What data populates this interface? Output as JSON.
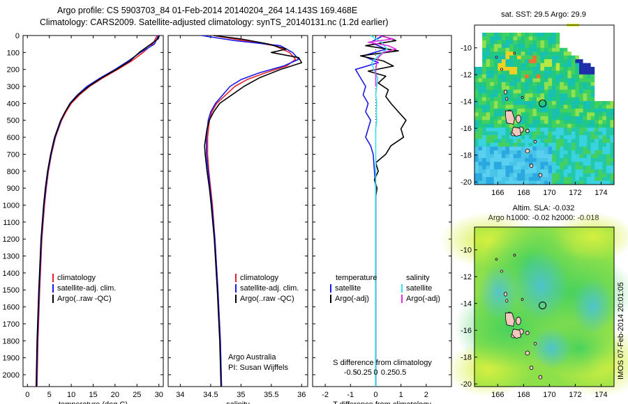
{
  "header": {
    "line1": "Argo profile: CS 5903703_84 01-Feb-2014 20140204_264 14.143S 169.468E",
    "line2": "Climatology: CARS2009. Satellite-adjusted climatology: synTS_20140131.nc (1.2d earlier)"
  },
  "side_stamp": "IMOS 07-Feb-2014 20:01:05",
  "colors": {
    "climatology": "#e8202a",
    "satellite": "#1a1ae6",
    "argo": "#000000",
    "sal_satellite": "#33e0f0",
    "sal_argo": "#e030e0",
    "float_marker": "#000000",
    "island": "#f2c8c0"
  },
  "chart_data": [
    {
      "type": "line",
      "name": "temperature",
      "xlabel": "temperature (deg C)",
      "ylabel": "",
      "xlim": [
        -1,
        31
      ],
      "xticks": [
        0,
        5,
        10,
        15,
        20,
        25,
        30
      ],
      "ylim": [
        0,
        2070
      ],
      "yticks": [
        0,
        100,
        200,
        300,
        400,
        500,
        600,
        700,
        800,
        900,
        1000,
        1100,
        1200,
        1300,
        1400,
        1500,
        1600,
        1700,
        1800,
        1900,
        2000
      ],
      "legend": [
        "climatology",
        "satellite-adj. clim.",
        "Argo(..raw -QC)"
      ],
      "series": [
        {
          "name": "climatology",
          "depth": [
            0,
            50,
            100,
            150,
            200,
            250,
            300,
            350,
            400,
            450,
            500,
            600,
            700,
            800,
            900,
            1000,
            1200,
            1500,
            1800,
            2070
          ],
          "values": [
            29.6,
            28.6,
            26.4,
            23.8,
            20.6,
            17.2,
            14.2,
            11.9,
            10.0,
            8.8,
            7.8,
            6.4,
            5.5,
            4.8,
            4.3,
            3.9,
            3.3,
            2.8,
            2.4,
            2.2
          ]
        },
        {
          "name": "satellite-adj. clim.",
          "depth": [
            0,
            50,
            100,
            150,
            200,
            250,
            300,
            350,
            400,
            450,
            500,
            600,
            700,
            800,
            900,
            1000,
            1200,
            1500,
            1800,
            2070
          ],
          "values": [
            29.9,
            29.0,
            25.8,
            23.0,
            20.0,
            16.6,
            13.6,
            11.4,
            9.7,
            8.6,
            7.7,
            6.3,
            5.4,
            4.7,
            4.2,
            3.8,
            3.2,
            2.7,
            2.3,
            2.1
          ]
        },
        {
          "name": "Argo(..raw -QC)",
          "depth": [
            0,
            20,
            50,
            100,
            150,
            200,
            250,
            300,
            350,
            400,
            450,
            500,
            600,
            700,
            800,
            900,
            1000,
            1200,
            1500,
            1800,
            2070
          ],
          "values": [
            30.1,
            29.8,
            28.2,
            25.5,
            23.4,
            20.3,
            16.9,
            14.0,
            11.6,
            9.8,
            8.6,
            7.6,
            6.2,
            5.3,
            4.6,
            4.1,
            3.7,
            3.1,
            2.6,
            2.2,
            2.0
          ]
        }
      ]
    },
    {
      "type": "line",
      "name": "salinity",
      "xlabel": "salinity",
      "ylabel": "",
      "xlim": [
        33.8,
        36.1
      ],
      "xticks": [
        34,
        34.5,
        35,
        35.5,
        36
      ],
      "xticklabels": [
        "34",
        "34.5",
        "35",
        "35.5",
        "36"
      ],
      "ylim": [
        0,
        2070
      ],
      "legend": [
        "climatology",
        "satellite-adj. clim.",
        "Argo(..raw -QC)"
      ],
      "annotation": [
        "Argo Australia",
        "PI: Susan Wijffels"
      ],
      "series": [
        {
          "name": "climatology",
          "depth": [
            0,
            30,
            60,
            100,
            140,
            180,
            220,
            260,
            300,
            350,
            400,
            450,
            500,
            600,
            700,
            800,
            900,
            1000,
            1200,
            1500,
            1800,
            2070
          ],
          "values": [
            34.55,
            35.05,
            35.55,
            35.8,
            35.9,
            35.75,
            35.4,
            35.1,
            34.9,
            34.75,
            34.6,
            34.52,
            34.48,
            34.45,
            34.45,
            34.47,
            34.5,
            34.53,
            34.57,
            34.62,
            34.66,
            34.68
          ]
        },
        {
          "name": "satellite-adj. clim.",
          "depth": [
            0,
            30,
            60,
            100,
            140,
            180,
            220,
            260,
            300,
            350,
            400,
            450,
            500,
            600,
            700,
            800,
            900,
            1000,
            1200,
            1500,
            1800,
            2070
          ],
          "values": [
            34.35,
            34.9,
            35.65,
            35.85,
            35.95,
            35.7,
            35.3,
            35.0,
            34.82,
            34.7,
            34.58,
            34.5,
            34.46,
            34.43,
            34.43,
            34.46,
            34.49,
            34.52,
            34.57,
            34.62,
            34.66,
            34.68
          ]
        },
        {
          "name": "Argo(..raw -QC)",
          "depth": [
            0,
            20,
            50,
            80,
            100,
            130,
            160,
            200,
            250,
            300,
            350,
            400,
            450,
            500,
            550,
            600,
            650,
            700,
            800,
            900,
            1000,
            1200,
            1500,
            1800,
            2070
          ],
          "values": [
            34.55,
            35.0,
            35.45,
            35.75,
            35.5,
            35.95,
            36.0,
            35.65,
            35.3,
            35.05,
            34.85,
            34.65,
            34.55,
            34.48,
            34.44,
            34.42,
            34.4,
            34.41,
            34.44,
            34.48,
            34.51,
            34.56,
            34.61,
            34.65,
            34.67
          ]
        }
      ]
    },
    {
      "type": "line",
      "name": "difference",
      "xlabel": "T difference from climatology",
      "xlabel_top": "S difference from climatology",
      "ylabel": "",
      "xlim": [
        -2.5,
        3.0
      ],
      "xticks": [
        -2,
        -1,
        0,
        1,
        2
      ],
      "s_ticks": [
        -0.5,
        -0.25,
        0,
        0.25,
        0.5
      ],
      "s_ticklabels": [
        "-0.5",
        "-0.25",
        "0",
        "0.25",
        "0.5"
      ],
      "ylim": [
        0,
        2070
      ],
      "legend_left_title": "temperature",
      "legend_right_title": "salinity",
      "legend": [
        "satellite",
        "Argo(-adj)",
        "satellite",
        "Argo(-adj)"
      ],
      "series": [
        {
          "name": "temperature satellite",
          "depth": [
            0,
            40,
            80,
            120,
            160,
            200,
            250,
            300,
            350,
            400,
            450,
            500,
            550,
            600,
            650,
            700,
            800,
            900,
            1000,
            1200,
            1500,
            1800,
            2070
          ],
          "values": [
            0.3,
            -0.2,
            0.4,
            -0.5,
            0.1,
            -0.8,
            -0.6,
            -0.4,
            -0.5,
            -0.3,
            -0.4,
            -0.2,
            -0.3,
            -0.4,
            -0.2,
            -0.1,
            -0.05,
            0.0,
            0.0,
            0.0,
            0.0,
            0.0,
            0.0
          ]
        },
        {
          "name": "temperature Argo(-adj)",
          "depth": [
            0,
            30,
            60,
            90,
            120,
            150,
            180,
            210,
            240,
            280,
            320,
            360,
            400,
            450,
            500,
            550,
            600,
            650,
            700,
            750,
            800,
            850,
            900,
            950,
            1000,
            1200,
            1500,
            1800,
            2070
          ],
          "values": [
            0.2,
            0.8,
            -0.4,
            0.9,
            -0.6,
            0.3,
            0.7,
            -0.3,
            0.4,
            0.1,
            0.5,
            0.4,
            0.6,
            0.9,
            1.2,
            1.0,
            1.1,
            0.6,
            0.4,
            0.0,
            0.1,
            -0.05,
            0.05,
            0.0,
            0.0,
            0.0,
            0.0,
            0.0,
            0.0
          ]
        },
        {
          "name": "salinity satellite",
          "depth": [
            0,
            40,
            80,
            120,
            160,
            200,
            250,
            300,
            350,
            400,
            450,
            500,
            550,
            600,
            700,
            800,
            900,
            1000,
            1200,
            1500,
            1800,
            2070
          ],
          "values": [
            -0.1,
            0.12,
            0.22,
            0.05,
            -0.08,
            -0.04,
            0.04,
            0.02,
            0.0,
            0.02,
            0.01,
            0.02,
            0.0,
            0.0,
            0.0,
            0.0,
            0.0,
            0.0,
            0.0,
            0.0,
            0.0,
            0.0
          ]
        },
        {
          "name": "salinity Argo(-adj)",
          "depth": [
            0,
            20,
            40,
            60,
            80,
            100,
            130,
            160,
            200,
            250,
            300
          ],
          "values": [
            0.05,
            0.35,
            -0.15,
            0.25,
            0.4,
            0.15,
            0.05,
            0.02,
            0.0,
            0.0,
            0.0
          ]
        }
      ]
    },
    {
      "type": "heatmap",
      "name": "sst-map",
      "title": "sat. SST: 29.5  Argo: 29.9",
      "xlim": [
        164.2,
        175.0
      ],
      "ylim": [
        -20.2,
        -8.3
      ],
      "xticks": [
        166,
        168,
        170,
        172,
        174
      ],
      "yticks": [
        -10,
        -12,
        -14,
        -16,
        -18,
        -20
      ],
      "float_position": {
        "lon": 169.468,
        "lat": -14.143
      }
    },
    {
      "type": "heatmap",
      "name": "sla-map",
      "title": "Altim. SLA: -0.032",
      "subtitle": "Argo h1000: -0.02  h2000: -0.018",
      "xlim": [
        164.2,
        175.0
      ],
      "ylim": [
        -20.2,
        -8.3
      ],
      "xticks": [
        166,
        168,
        170,
        172,
        174
      ],
      "yticks": [
        -10,
        -12,
        -14,
        -16,
        -18,
        -20
      ],
      "float_position": {
        "lon": 169.468,
        "lat": -14.143
      }
    }
  ]
}
